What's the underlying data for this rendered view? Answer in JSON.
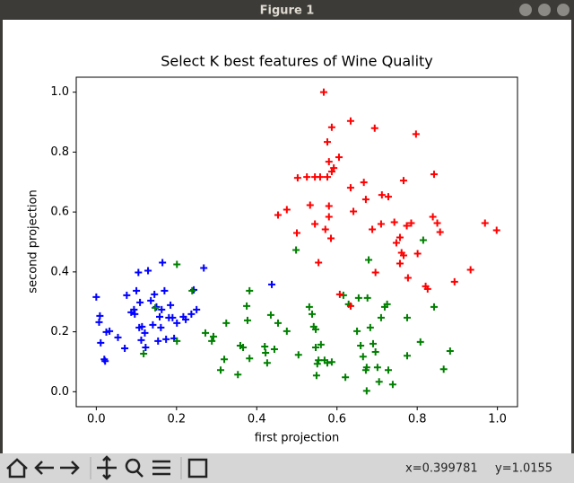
{
  "window": {
    "title": "Figure 1"
  },
  "status": {
    "x": "x=0.399781",
    "y": "y=1.0155"
  },
  "chart_data": {
    "type": "scatter",
    "title": "Select K best features of Wine Quality",
    "xlabel": "first projection",
    "ylabel": "second projection",
    "xlim": [
      -0.05,
      1.05
    ],
    "ylim": [
      -0.05,
      1.05
    ],
    "xticks": [
      {
        "value": 0,
        "label": "0.0"
      },
      0.2,
      0.4,
      0.6,
      0.8,
      {
        "value": 1,
        "label": "1.0"
      }
    ],
    "yticks": [
      {
        "value": 0,
        "label": "0.0"
      },
      0.2,
      0.4,
      0.6,
      0.8,
      {
        "value": 1,
        "label": "1.0"
      }
    ],
    "marker": "+",
    "series": [
      {
        "color": "#0000ff",
        "x": [
          0.0,
          0.009,
          0.007,
          0.011,
          0.025,
          0.02,
          0.022,
          0.033,
          0.054,
          0.071,
          0.076,
          0.087,
          0.094,
          0.096,
          0.1,
          0.105,
          0.109,
          0.107,
          0.112,
          0.114,
          0.121,
          0.123,
          0.129,
          0.136,
          0.141,
          0.145,
          0.15,
          0.154,
          0.158,
          0.161,
          0.163,
          0.165,
          0.17,
          0.174,
          0.181,
          0.185,
          0.19,
          0.194,
          0.201,
          0.217,
          0.223,
          0.237,
          0.243,
          0.25,
          0.268,
          0.4375
        ],
        "values": [
          0.316,
          0.253,
          0.232,
          0.163,
          0.199,
          0.108,
          0.102,
          0.202,
          0.181,
          0.145,
          0.322,
          0.265,
          0.274,
          0.259,
          0.337,
          0.398,
          0.298,
          0.214,
          0.172,
          0.217,
          0.196,
          0.148,
          0.404,
          0.304,
          0.223,
          0.325,
          0.283,
          0.169,
          0.25,
          0.214,
          0.274,
          0.431,
          0.337,
          0.175,
          0.247,
          0.289,
          0.247,
          0.178,
          0.229,
          0.25,
          0.241,
          0.259,
          0.34,
          0.274,
          0.413,
          0.358
        ]
      },
      {
        "color": "#008000",
        "x": [
          0.118,
          0.147,
          0.201,
          0.201,
          0.239,
          0.272,
          0.288,
          0.292,
          0.31,
          0.319,
          0.324,
          0.353,
          0.359,
          0.366,
          0.375,
          0.377,
          0.382,
          0.382,
          0.42,
          0.422,
          0.426,
          0.435,
          0.444,
          0.453,
          0.475,
          0.498,
          0.504,
          0.531,
          0.538,
          0.542,
          0.547,
          0.547,
          0.549,
          0.551,
          0.554,
          0.56,
          0.569,
          0.576,
          0.587,
          0.616,
          0.621,
          0.629,
          0.65,
          0.654,
          0.659,
          0.665,
          0.672,
          0.674,
          0.676,
          0.679,
          0.683,
          0.69,
          0.696,
          0.701,
          0.705,
          0.71,
          0.719,
          0.725,
          0.728,
          0.739,
          0.674,
          0.775,
          0.775,
          0.808,
          0.815,
          0.842,
          0.866,
          0.882
        ],
        "values": [
          0.127,
          0.28,
          0.425,
          0.169,
          0.337,
          0.196,
          0.169,
          0.184,
          0.072,
          0.108,
          0.229,
          0.057,
          0.154,
          0.148,
          0.286,
          0.238,
          0.337,
          0.111,
          0.151,
          0.13,
          0.096,
          0.256,
          0.142,
          0.229,
          0.202,
          0.473,
          0.123,
          0.283,
          0.259,
          0.217,
          0.208,
          0.148,
          0.054,
          0.093,
          0.105,
          0.157,
          0.105,
          0.096,
          0.099,
          0.322,
          0.048,
          0.292,
          0.202,
          0.313,
          0.154,
          0.117,
          0.072,
          0.081,
          0.313,
          0.44,
          0.214,
          0.16,
          0.133,
          0.081,
          0.033,
          0.247,
          0.283,
          0.292,
          0.072,
          0.024,
          0.003,
          0.247,
          0.12,
          0.166,
          0.506,
          0.283,
          0.075,
          0.136
        ]
      },
      {
        "color": "#ff0000",
        "x": [
          0.567,
          0.634,
          0.587,
          0.694,
          0.797,
          0.576,
          0.605,
          0.58,
          0.592,
          0.587,
          0.576,
          0.558,
          0.545,
          0.525,
          0.502,
          0.842,
          0.634,
          0.667,
          0.766,
          0.672,
          0.712,
          0.728,
          0.533,
          0.58,
          0.475,
          0.453,
          0.641,
          0.545,
          0.58,
          0.743,
          0.71,
          0.774,
          0.785,
          0.839,
          0.85,
          0.857,
          0.969,
          0.998,
          0.5,
          0.571,
          0.585,
          0.688,
          0.757,
          0.748,
          0.766,
          0.761,
          0.801,
          0.554,
          0.696,
          0.757,
          0.777,
          0.821,
          0.826,
          0.893,
          0.933,
          0.607,
          0.634
        ],
        "values": [
          1.0,
          0.904,
          0.883,
          0.88,
          0.86,
          0.834,
          0.783,
          0.768,
          0.747,
          0.735,
          0.717,
          0.717,
          0.717,
          0.717,
          0.714,
          0.726,
          0.681,
          0.699,
          0.705,
          0.642,
          0.657,
          0.651,
          0.623,
          0.62,
          0.608,
          0.59,
          0.602,
          0.56,
          0.584,
          0.566,
          0.56,
          0.554,
          0.563,
          0.584,
          0.563,
          0.533,
          0.563,
          0.539,
          0.53,
          0.542,
          0.512,
          0.542,
          0.515,
          0.497,
          0.455,
          0.464,
          0.461,
          0.431,
          0.398,
          0.428,
          0.38,
          0.352,
          0.343,
          0.367,
          0.407,
          0.325,
          0.286
        ]
      }
    ]
  }
}
